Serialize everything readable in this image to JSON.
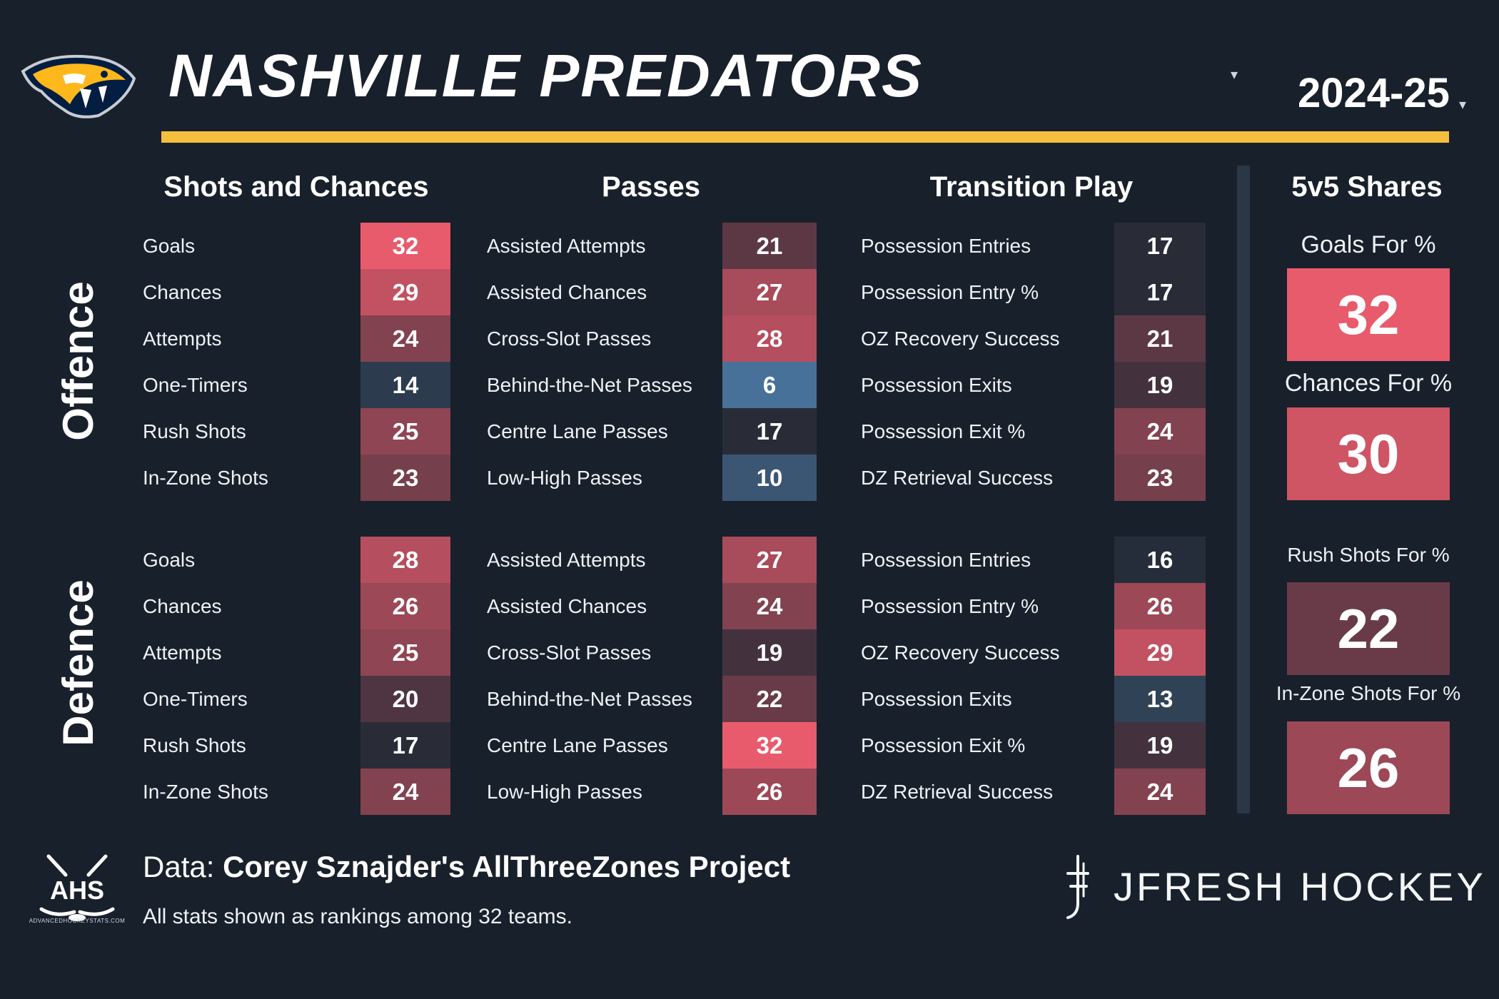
{
  "header": {
    "team": "NASHVILLE PREDATORS",
    "season": "2024-25",
    "team_caret": "▾",
    "season_caret": "▾"
  },
  "sections": {
    "shots": "Shots and Chances",
    "passes": "Passes",
    "transition": "Transition Play",
    "shares": "5v5 Shares"
  },
  "groups": {
    "offence": "Offence",
    "defence": "Defence"
  },
  "offence": {
    "shots": [
      {
        "label": "Goals",
        "rank": "32"
      },
      {
        "label": "Chances",
        "rank": "29"
      },
      {
        "label": "Attempts",
        "rank": "24"
      },
      {
        "label": "One-Timers",
        "rank": "14"
      },
      {
        "label": "Rush Shots",
        "rank": "25"
      },
      {
        "label": "In-Zone Shots",
        "rank": "23"
      }
    ],
    "passes": [
      {
        "label": "Assisted Attempts",
        "rank": "21"
      },
      {
        "label": "Assisted Chances",
        "rank": "27"
      },
      {
        "label": "Cross-Slot Passes",
        "rank": "28"
      },
      {
        "label": "Behind-the-Net Passes",
        "rank": "6"
      },
      {
        "label": "Centre Lane Passes",
        "rank": "17"
      },
      {
        "label": "Low-High Passes",
        "rank": "10"
      }
    ],
    "transition": [
      {
        "label": "Possession Entries",
        "rank": "17"
      },
      {
        "label": "Possession Entry %",
        "rank": "17"
      },
      {
        "label": "OZ Recovery Success",
        "rank": "21"
      },
      {
        "label": "Possession Exits",
        "rank": "19"
      },
      {
        "label": "Possession Exit %",
        "rank": "24"
      },
      {
        "label": "DZ Retrieval Success",
        "rank": "23"
      }
    ]
  },
  "defence": {
    "shots": [
      {
        "label": "Goals",
        "rank": "28"
      },
      {
        "label": "Chances",
        "rank": "26"
      },
      {
        "label": "Attempts",
        "rank": "25"
      },
      {
        "label": "One-Timers",
        "rank": "20"
      },
      {
        "label": "Rush Shots",
        "rank": "17"
      },
      {
        "label": "In-Zone Shots",
        "rank": "24"
      }
    ],
    "passes": [
      {
        "label": "Assisted Attempts",
        "rank": "27"
      },
      {
        "label": "Assisted Chances",
        "rank": "24"
      },
      {
        "label": "Cross-Slot Passes",
        "rank": "19"
      },
      {
        "label": "Behind-the-Net Passes",
        "rank": "22"
      },
      {
        "label": "Centre Lane Passes",
        "rank": "32"
      },
      {
        "label": "Low-High Passes",
        "rank": "26"
      }
    ],
    "transition": [
      {
        "label": "Possession Entries",
        "rank": "16"
      },
      {
        "label": "Possession Entry %",
        "rank": "26"
      },
      {
        "label": "OZ Recovery Success",
        "rank": "29"
      },
      {
        "label": "Possession Exits",
        "rank": "13"
      },
      {
        "label": "Possession Exit %",
        "rank": "19"
      },
      {
        "label": "DZ Retrieval Success",
        "rank": "24"
      }
    ]
  },
  "shares": [
    {
      "label": "Goals For %",
      "rank": "32"
    },
    {
      "label": "Chances For %",
      "rank": "30"
    },
    {
      "label": "Rush Shots For %",
      "rank": "22"
    },
    {
      "label": "In-Zone Shots For %",
      "rank": "26"
    }
  ],
  "colors": {
    "background": "#18202b",
    "accent_gold": "#f4bf3f",
    "rank_1": "#5a93c8",
    "rank_mid": "#232a35",
    "rank_32": "#e85b6c"
  },
  "footer": {
    "data_prefix": "Data: ",
    "data_source": "Corey Sznajder's AllThreeZones Project",
    "note": "All stats shown as rankings among 32 teams.",
    "ahs_caption": "ADVANCEDHOCKEYSTATS.COM",
    "ahs_text": "AHS",
    "brand": "JFRESH HOCKEY"
  }
}
